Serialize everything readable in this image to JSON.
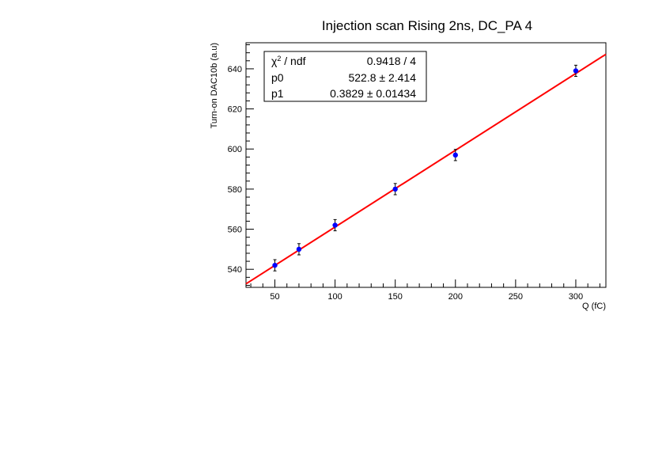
{
  "chart_data": {
    "type": "scatter",
    "title": "Injection scan Rising 2ns, DC_PA 4",
    "xlabel": "Q (fC)",
    "ylabel": "Turn-on DAC10b (a.u)",
    "xlim": [
      26,
      325
    ],
    "ylim": [
      531,
      653
    ],
    "x_ticks": [
      50,
      100,
      150,
      200,
      250,
      300
    ],
    "y_ticks": [
      540,
      560,
      580,
      600,
      620,
      640
    ],
    "series": [
      {
        "x": [
          50,
          70,
          100,
          150,
          200,
          300
        ],
        "y": [
          542,
          550,
          562,
          580,
          597,
          639
        ],
        "y_err": [
          2.8,
          2.8,
          2.8,
          2.8,
          2.8,
          2.8
        ],
        "color": "#0000ff"
      }
    ],
    "fit": {
      "intercept": 522.8,
      "slope": 0.3829,
      "color": "#ff0000"
    },
    "stats_box": {
      "rows": [
        {
          "label": "χ² / ndf",
          "value": "0.9418 / 4"
        },
        {
          "label": "p0",
          "value": "522.8 ± 2.414"
        },
        {
          "label": "p1",
          "value": "0.3829 ± 0.01434"
        }
      ],
      "placement": "top-left"
    }
  }
}
